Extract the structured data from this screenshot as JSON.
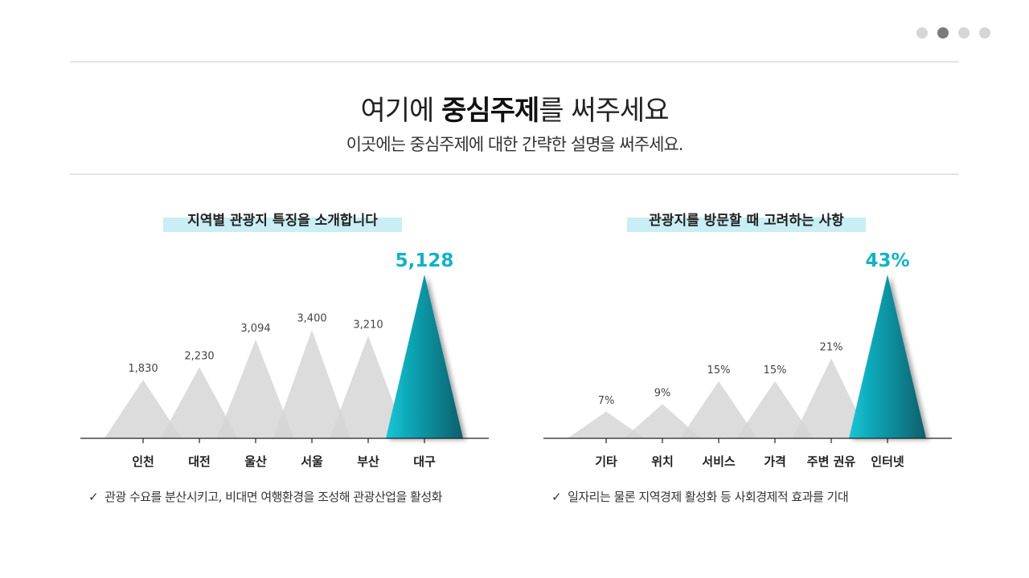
{
  "page": {
    "title_prefix": "여기에 ",
    "title_bold": "중심주제",
    "title_suffix": "를 써주세요",
    "subtitle": "이곳에는 중심주제에 대한 간략한 설명을 써주세요."
  },
  "colors": {
    "accent": "#10b3c6",
    "accent_dark": "#0a6f7c",
    "peak_gray": "#d9d9d9",
    "highlight": "#c9eef3"
  },
  "chart_data": [
    {
      "type": "area",
      "title": "지역별 관광지 특징을 소개합니다",
      "categories": [
        "인천",
        "대전",
        "울산",
        "서울",
        "부산",
        "대구"
      ],
      "values": [
        1830,
        2230,
        3094,
        3400,
        3210,
        5128
      ],
      "value_labels": [
        "1,830",
        "2,230",
        "3,094",
        "3,400",
        "3,210",
        "5,128"
      ],
      "highlight_index": 5,
      "ylim": [
        0,
        5128
      ],
      "grid": false
    },
    {
      "type": "area",
      "title": "관광지를 방문할 때 고려하는 사항",
      "categories": [
        "기타",
        "위치",
        "서비스",
        "가격",
        "주변 권유",
        "인터넷"
      ],
      "values": [
        7,
        9,
        15,
        15,
        21,
        43
      ],
      "value_labels": [
        "7%",
        "9%",
        "15%",
        "15%",
        "21%",
        "43%"
      ],
      "highlight_index": 5,
      "ylim": [
        0,
        43
      ],
      "grid": false
    }
  ],
  "notes": [
    {
      "check": "✓",
      "text": "관광 수요를 분산시키고, 비대면 여행환경을 조성해 관광산업을 활성화"
    },
    {
      "check": "✓",
      "text": "일자리는 물론 지역경제 활성화 등 사회경제적 효과를 기대"
    }
  ]
}
